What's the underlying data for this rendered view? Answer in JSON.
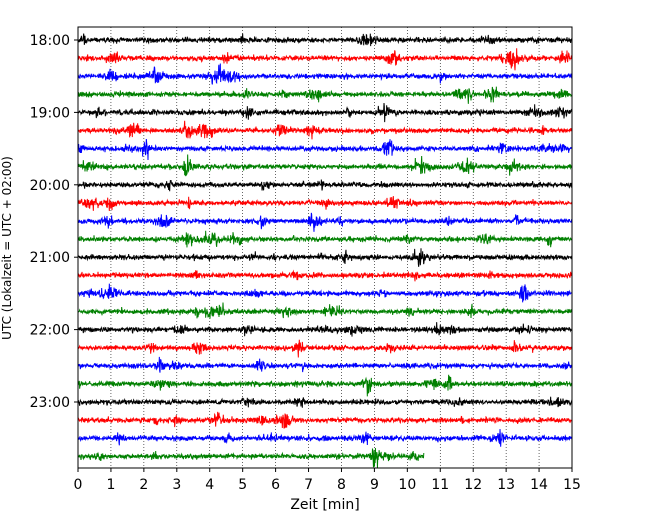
{
  "chart_data": {
    "type": "line",
    "title": "",
    "xlabel": "Zeit  [min]",
    "ylabel": "UTC (Lokalzeit = UTC + 02:00)",
    "xlim": [
      0,
      15
    ],
    "x_ticks": [
      0,
      1,
      2,
      3,
      4,
      5,
      6,
      7,
      8,
      9,
      10,
      11,
      12,
      13,
      14,
      15
    ],
    "grid": "vertical dotted",
    "start_time": "18:00",
    "row_interval_min": 15,
    "row_colors": [
      "#000000",
      "#ff0000",
      "#0000ff",
      "#008000"
    ],
    "y_ticks": [
      "18:00",
      "19:00",
      "20:00",
      "21:00",
      "22:00",
      "23:00"
    ],
    "rows": [
      {
        "start": "18:00",
        "end_min": 15
      },
      {
        "start": "18:15",
        "end_min": 15
      },
      {
        "start": "18:30",
        "end_min": 15
      },
      {
        "start": "18:45",
        "end_min": 15
      },
      {
        "start": "19:00",
        "end_min": 15
      },
      {
        "start": "19:15",
        "end_min": 15
      },
      {
        "start": "19:30",
        "end_min": 15
      },
      {
        "start": "19:45",
        "end_min": 15
      },
      {
        "start": "20:00",
        "end_min": 15
      },
      {
        "start": "20:15",
        "end_min": 15
      },
      {
        "start": "20:30",
        "end_min": 15
      },
      {
        "start": "20:45",
        "end_min": 15
      },
      {
        "start": "21:00",
        "end_min": 15
      },
      {
        "start": "21:15",
        "end_min": 15
      },
      {
        "start": "21:30",
        "end_min": 15
      },
      {
        "start": "21:45",
        "end_min": 15
      },
      {
        "start": "22:00",
        "end_min": 15
      },
      {
        "start": "22:15",
        "end_min": 15
      },
      {
        "start": "22:30",
        "end_min": 15
      },
      {
        "start": "22:45",
        "end_min": 15
      },
      {
        "start": "23:00",
        "end_min": 15
      },
      {
        "start": "23:15",
        "end_min": 15
      },
      {
        "start": "23:30",
        "end_min": 15
      },
      {
        "start": "23:45",
        "end_min": 10.5
      }
    ]
  }
}
